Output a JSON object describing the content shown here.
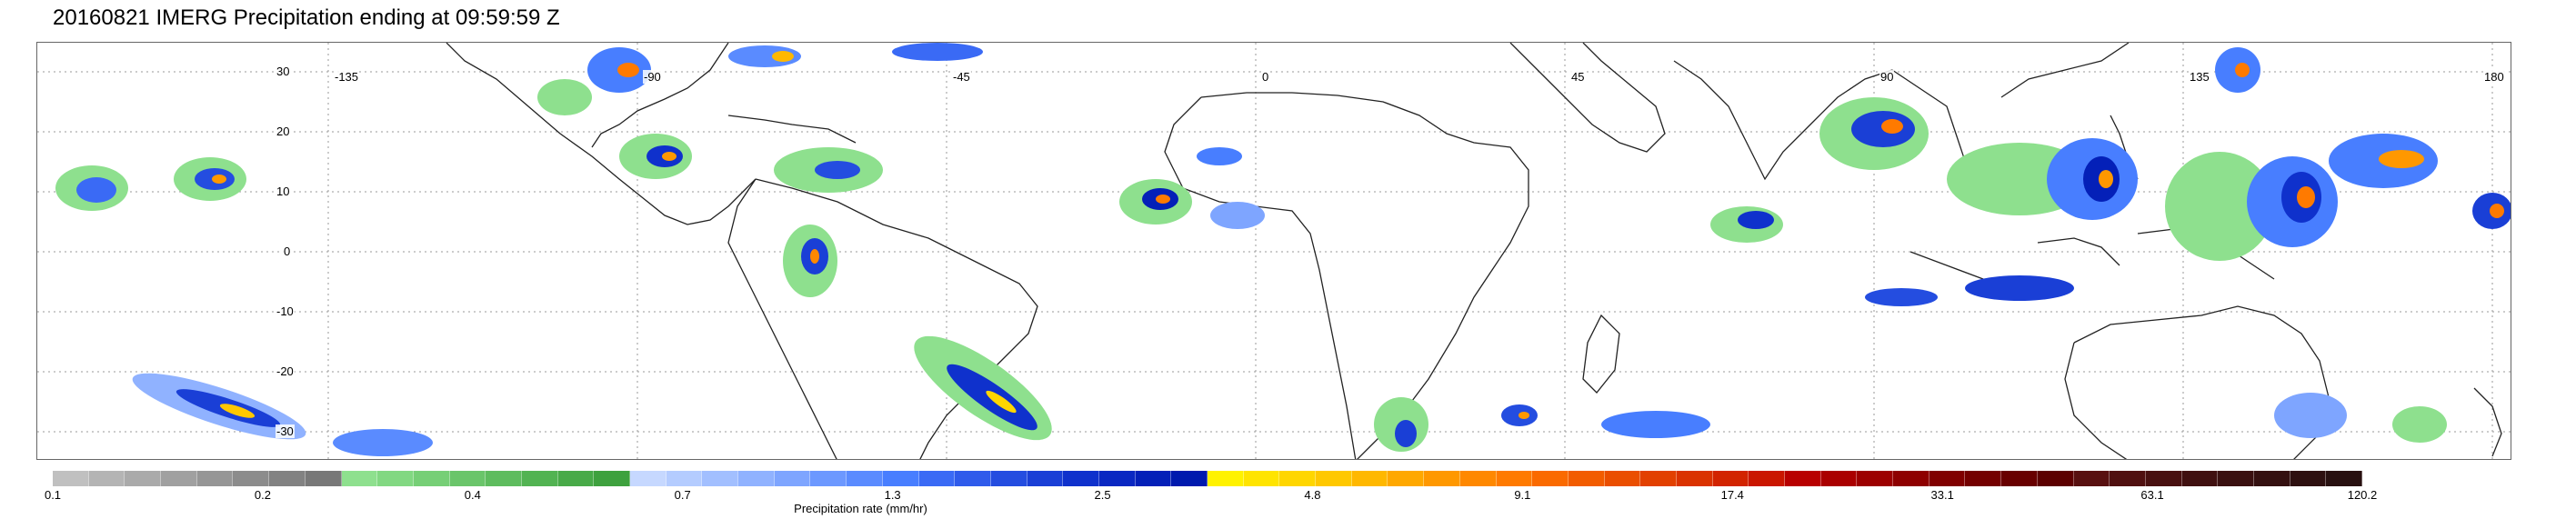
{
  "title": "20160821 IMERG Precipitation ending at 09:59:59 Z",
  "map": {
    "lat_labels": [
      "30",
      "20",
      "10",
      "0",
      "-10",
      "-20",
      "-30"
    ],
    "lon_labels": [
      "-135",
      "-90",
      "-45",
      "0",
      "45",
      "90",
      "135",
      "180"
    ],
    "gridlines": true,
    "gridline_style": "dotted"
  },
  "colorbar": {
    "caption": "Precipitation rate (mm/hr)",
    "tick_labels": [
      "0.1",
      "0.2",
      "0.4",
      "0.7",
      "1.3",
      "2.5",
      "4.8",
      "9.1",
      "17.4",
      "33.1",
      "63.1",
      "120.2"
    ],
    "colors": [
      "#c0c0c0",
      "#b4b4b4",
      "#aaaaaa",
      "#a0a0a0",
      "#969696",
      "#8c8c8c",
      "#828282",
      "#787878",
      "#8ee08e",
      "#82d882",
      "#76cf76",
      "#6ac56a",
      "#5ebc5e",
      "#52b352",
      "#48aa48",
      "#3ea13e",
      "#c6d8ff",
      "#b4ccff",
      "#a2bfff",
      "#90b2ff",
      "#7ea5ff",
      "#6c98ff",
      "#5a8bff",
      "#487eff",
      "#3a6af5",
      "#2f5beb",
      "#244de0",
      "#1a3fd6",
      "#0f31cc",
      "#0a28c2",
      "#0420b8",
      "#001aae",
      "#fff200",
      "#ffe400",
      "#ffd600",
      "#ffc800",
      "#ffb800",
      "#ffa800",
      "#ff9800",
      "#ff8800",
      "#ff7a00",
      "#fa6a00",
      "#f25c00",
      "#ea4e00",
      "#e24000",
      "#da3200",
      "#d22400",
      "#ca1600",
      "#b80000",
      "#aa0000",
      "#9c0000",
      "#8e0000",
      "#800000",
      "#740000",
      "#680000",
      "#5c0000",
      "#581010",
      "#501010",
      "#481010",
      "#401010",
      "#3a1010",
      "#341010",
      "#2e1010",
      "#281010"
    ]
  }
}
